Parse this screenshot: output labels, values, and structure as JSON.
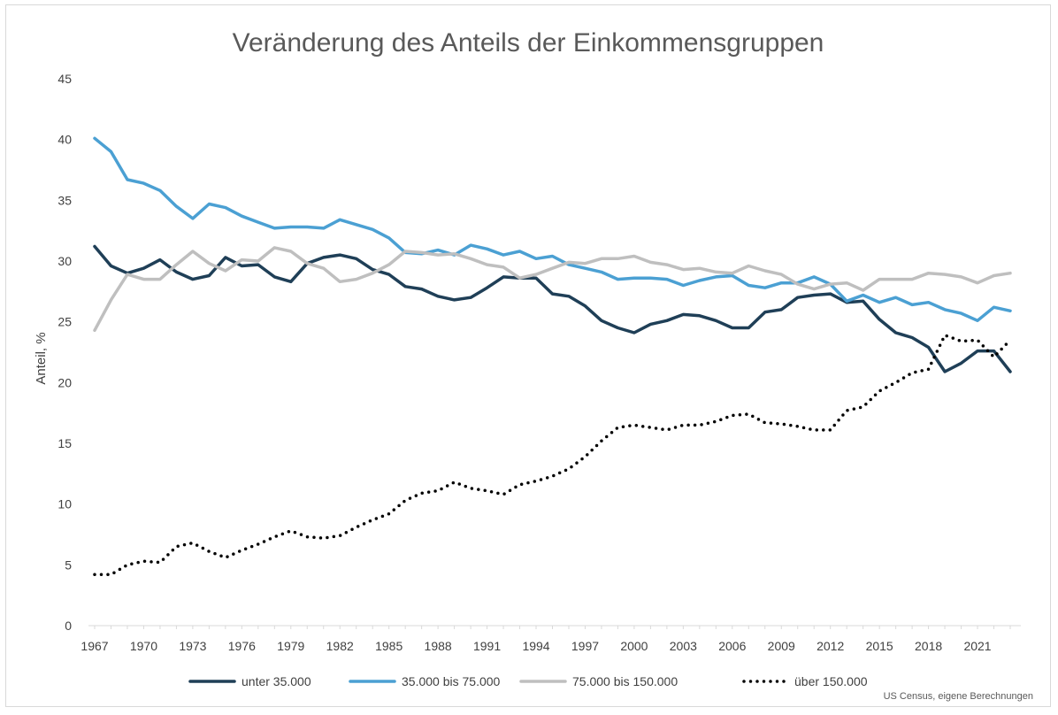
{
  "chart_data": {
    "type": "line",
    "title": "Veränderung des Anteils der Einkommensgruppen",
    "xlabel": "",
    "ylabel": "Anteil, %",
    "ylim": [
      0,
      45
    ],
    "yticks": [
      0,
      5,
      10,
      15,
      20,
      25,
      30,
      35,
      40,
      45
    ],
    "xlim": [
      1967,
      2023
    ],
    "xtick_labels": [
      "1967",
      "1970",
      "1973",
      "1976",
      "1979",
      "1982",
      "1985",
      "1988",
      "1991",
      "1994",
      "1997",
      "2000",
      "2003",
      "2006",
      "2009",
      "2012",
      "2015",
      "2018",
      "2021"
    ],
    "grid": false,
    "legend_position": "bottom",
    "source": "US Census, eigene Berechnungen",
    "x": [
      1967,
      1968,
      1969,
      1970,
      1971,
      1972,
      1973,
      1974,
      1975,
      1976,
      1977,
      1978,
      1979,
      1980,
      1981,
      1982,
      1983,
      1984,
      1985,
      1986,
      1987,
      1988,
      1989,
      1990,
      1991,
      1992,
      1993,
      1994,
      1995,
      1996,
      1997,
      1998,
      1999,
      2000,
      2001,
      2002,
      2003,
      2004,
      2005,
      2006,
      2007,
      2008,
      2009,
      2010,
      2011,
      2012,
      2013,
      2014,
      2015,
      2016,
      2017,
      2018,
      2019,
      2020,
      2021,
      2022,
      2023
    ],
    "series": [
      {
        "name": "unter 35.000",
        "color": "#1f3f57",
        "style": "solid",
        "values": [
          31.2,
          29.6,
          29.0,
          29.4,
          30.1,
          29.1,
          28.5,
          28.8,
          30.3,
          29.6,
          29.7,
          28.7,
          28.3,
          29.8,
          30.3,
          30.5,
          30.2,
          29.3,
          28.9,
          27.9,
          27.7,
          27.1,
          26.8,
          27.0,
          27.8,
          28.7,
          28.6,
          28.6,
          27.3,
          27.1,
          26.3,
          25.1,
          24.5,
          24.1,
          24.8,
          25.1,
          25.6,
          25.5,
          25.1,
          24.5,
          24.5,
          25.8,
          26.0,
          27.0,
          27.2,
          27.3,
          26.6,
          26.7,
          25.2,
          24.1,
          23.7,
          22.9,
          20.9,
          21.6,
          22.6,
          22.6,
          20.9
        ]
      },
      {
        "name": "35.000 bis 75.000",
        "color": "#4ba0d3",
        "style": "solid",
        "values": [
          40.1,
          39.0,
          36.7,
          36.4,
          35.8,
          34.5,
          33.5,
          34.7,
          34.4,
          33.7,
          33.2,
          32.7,
          32.8,
          32.8,
          32.7,
          33.4,
          33.0,
          32.6,
          31.9,
          30.7,
          30.6,
          30.9,
          30.5,
          31.3,
          31.0,
          30.5,
          30.8,
          30.2,
          30.4,
          29.7,
          29.4,
          29.1,
          28.5,
          28.6,
          28.6,
          28.5,
          28.0,
          28.4,
          28.7,
          28.8,
          28.0,
          27.8,
          28.2,
          28.2,
          28.7,
          28.1,
          26.7,
          27.2,
          26.6,
          27.0,
          26.4,
          26.6,
          26.0,
          25.7,
          25.1,
          26.2,
          25.9
        ]
      },
      {
        "name": "75.000 bis 150.000",
        "color": "#bfbfbf",
        "style": "solid",
        "values": [
          24.3,
          26.8,
          28.9,
          28.5,
          28.5,
          29.7,
          30.8,
          29.8,
          29.2,
          30.1,
          30.0,
          31.1,
          30.8,
          29.8,
          29.4,
          28.3,
          28.5,
          29.0,
          29.7,
          30.8,
          30.7,
          30.5,
          30.6,
          30.2,
          29.7,
          29.5,
          28.6,
          28.9,
          29.4,
          29.9,
          29.8,
          30.2,
          30.2,
          30.4,
          29.9,
          29.7,
          29.3,
          29.4,
          29.1,
          29.0,
          29.6,
          29.2,
          28.9,
          28.1,
          27.7,
          28.1,
          28.2,
          27.6,
          28.5,
          28.5,
          28.5,
          29.0,
          28.9,
          28.7,
          28.2,
          28.8,
          29.0
        ]
      },
      {
        "name": "über 150.000",
        "color": "#000000",
        "style": "dotted",
        "values": [
          4.2,
          4.2,
          5.0,
          5.3,
          5.2,
          6.5,
          6.8,
          6.1,
          5.6,
          6.2,
          6.7,
          7.3,
          7.8,
          7.3,
          7.2,
          7.4,
          8.1,
          8.7,
          9.2,
          10.3,
          10.9,
          11.1,
          11.8,
          11.3,
          11.1,
          10.8,
          11.6,
          11.9,
          12.3,
          12.9,
          13.9,
          15.2,
          16.3,
          16.5,
          16.3,
          16.1,
          16.5,
          16.5,
          16.8,
          17.3,
          17.4,
          16.7,
          16.6,
          16.4,
          16.1,
          16.1,
          17.7,
          18.0,
          19.3,
          20.0,
          20.8,
          21.1,
          23.9,
          23.4,
          23.5,
          22.1,
          23.5
        ]
      }
    ]
  }
}
